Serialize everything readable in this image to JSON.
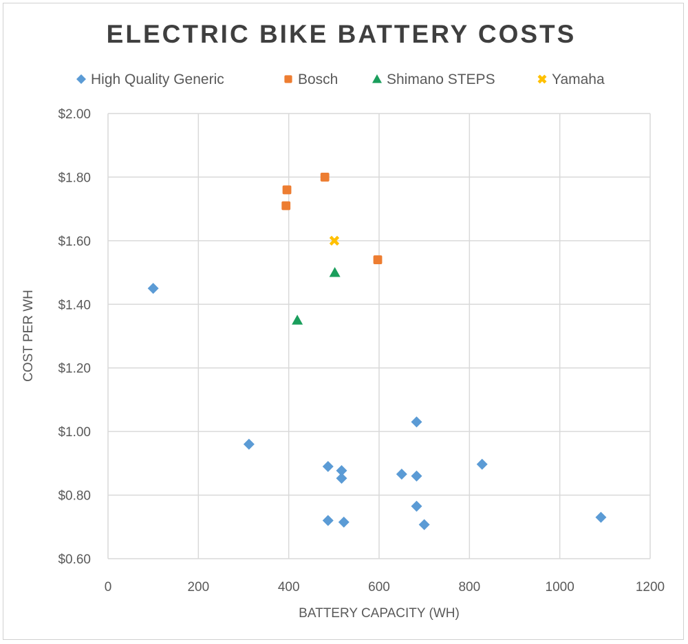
{
  "chart_data": {
    "type": "scatter",
    "title": "ELECTRIC BIKE BATTERY COSTS",
    "xlabel": "BATTERY CAPACITY (WH)",
    "ylabel": "COST PER WH",
    "xlim": [
      0,
      1200
    ],
    "ylim": [
      0.6,
      2.0
    ],
    "xticks": [
      "0",
      "200",
      "400",
      "600",
      "800",
      "1000",
      "1200"
    ],
    "yticks": [
      "$0.60",
      "$0.80",
      "$1.00",
      "$1.20",
      "$1.40",
      "$1.60",
      "$1.80",
      "$2.00"
    ],
    "grid": true,
    "legend_position": "top",
    "series": [
      {
        "name": "High Quality Generic",
        "marker": "diamond",
        "color": "#5b9bd5",
        "points": [
          [
            100,
            1.45
          ],
          [
            312,
            0.96
          ],
          [
            487,
            0.89
          ],
          [
            517,
            0.877
          ],
          [
            517,
            0.853
          ],
          [
            487,
            0.72
          ],
          [
            522,
            0.715
          ],
          [
            650,
            0.866
          ],
          [
            683,
            1.03
          ],
          [
            683,
            0.86
          ],
          [
            683,
            0.765
          ],
          [
            700,
            0.707
          ],
          [
            828,
            0.897
          ],
          [
            1091,
            0.73
          ]
        ]
      },
      {
        "name": "Bosch",
        "marker": "square",
        "color": "#ed7d31",
        "points": [
          [
            396,
            1.76
          ],
          [
            394,
            1.71
          ],
          [
            480,
            1.8
          ],
          [
            597,
            1.54
          ]
        ]
      },
      {
        "name": "Shimano STEPS",
        "marker": "triangle",
        "color": "#1a9e5c",
        "points": [
          [
            419,
            1.35
          ],
          [
            502,
            1.5
          ]
        ]
      },
      {
        "name": "Yamaha",
        "marker": "x",
        "color": "#ffc000",
        "points": [
          [
            501,
            1.6
          ]
        ]
      }
    ]
  }
}
